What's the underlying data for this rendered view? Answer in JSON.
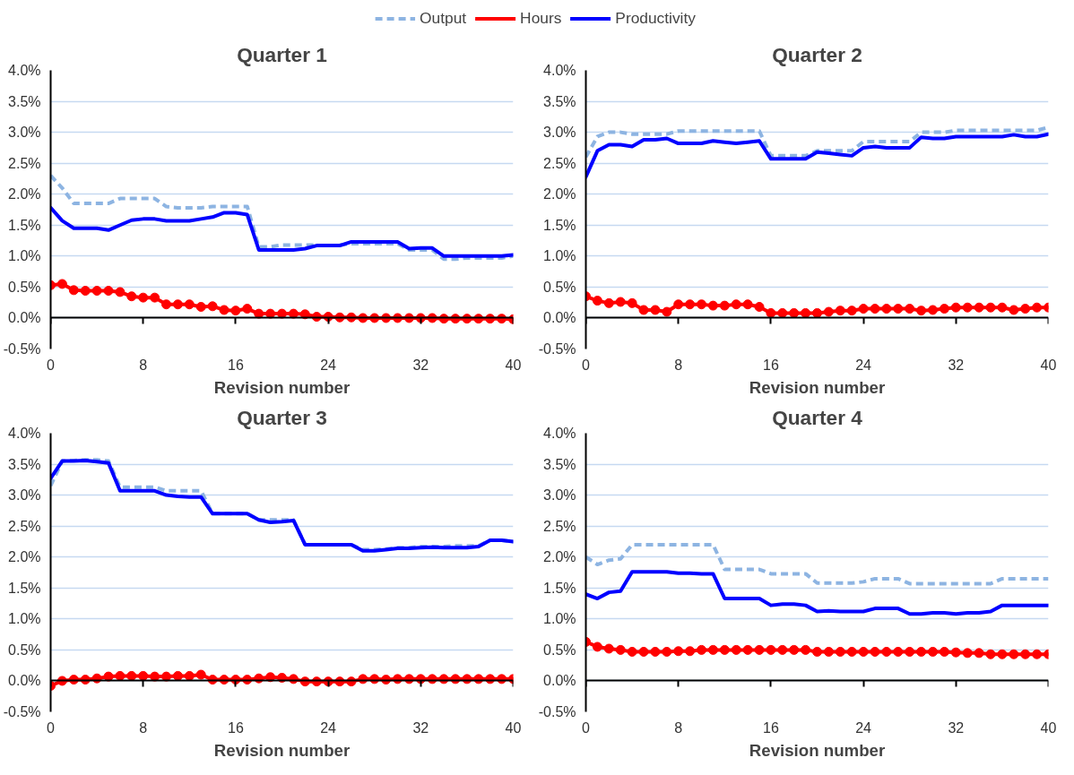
{
  "chart_data": [
    {
      "type": "line",
      "title": "Quarter 1",
      "xlabel": "Revision number",
      "legend": "top",
      "grid": "y",
      "x": [
        0,
        1,
        2,
        3,
        4,
        5,
        6,
        7,
        8,
        9,
        10,
        11,
        12,
        13,
        14,
        15,
        16,
        17,
        18,
        19,
        20,
        21,
        22,
        23,
        24,
        25,
        26,
        27,
        28,
        29,
        30,
        31,
        32,
        33,
        34,
        35,
        36,
        37,
        38,
        39,
        40
      ],
      "xlim": [
        0,
        40
      ],
      "xticks": [
        0,
        8,
        16,
        24,
        32,
        40
      ],
      "ylim": [
        -0.5,
        4
      ],
      "yticks": [
        {
          "value": -0.5,
          "label": "-0.5%"
        },
        {
          "value": 0,
          "label": "0.0%"
        },
        {
          "value": 0.5,
          "label": "0.5%"
        },
        {
          "value": 1,
          "label": "1.0%"
        },
        {
          "value": 1.5,
          "label": "1.5%"
        },
        {
          "value": 2,
          "label": "2.0%"
        },
        {
          "value": 2.5,
          "label": "2.5%"
        },
        {
          "value": 3,
          "label": "3.0%"
        },
        {
          "value": 3.5,
          "label": "3.5%"
        },
        {
          "value": 4,
          "label": "4.0%"
        }
      ],
      "series": [
        {
          "name": "Output",
          "color": "#8db4e2",
          "line_style": "dashed",
          "marker": "none",
          "values": [
            2.3,
            2.1,
            1.85,
            1.85,
            1.85,
            1.85,
            1.93,
            1.93,
            1.93,
            1.93,
            1.8,
            1.78,
            1.78,
            1.78,
            1.8,
            1.8,
            1.8,
            1.8,
            1.15,
            1.15,
            1.18,
            1.18,
            1.18,
            1.18,
            null,
            1.18,
            1.2,
            1.2,
            1.2,
            1.2,
            1.2,
            1.1,
            1.1,
            1.1,
            0.95,
            0.95,
            0.97,
            0.97,
            0.97,
            0.97,
            1.0
          ]
        },
        {
          "name": "Hours",
          "color": "#ff0000",
          "line_style": "solid",
          "marker": "circle",
          "values": [
            0.53,
            0.55,
            0.45,
            0.44,
            0.44,
            0.44,
            0.42,
            0.35,
            0.33,
            0.33,
            0.22,
            0.22,
            0.22,
            0.18,
            0.19,
            0.13,
            0.12,
            0.15,
            0.07,
            0.07,
            0.07,
            0.07,
            0.06,
            0.02,
            0.02,
            0.01,
            0.01,
            0.0,
            0.0,
            0.0,
            0.0,
            0.0,
            0.0,
            0.0,
            -0.01,
            -0.01,
            -0.01,
            -0.01,
            -0.01,
            -0.01,
            -0.02
          ]
        },
        {
          "name": "Productivity",
          "color": "#0000ff",
          "line_style": "solid",
          "marker": "none",
          "values": [
            1.78,
            1.57,
            1.45,
            1.45,
            1.45,
            1.42,
            1.5,
            1.58,
            1.6,
            1.6,
            1.57,
            1.57,
            1.57,
            1.6,
            1.63,
            1.7,
            1.7,
            1.67,
            1.1,
            1.1,
            1.1,
            1.1,
            1.12,
            1.17,
            1.17,
            1.17,
            1.23,
            1.23,
            1.23,
            1.23,
            1.23,
            1.12,
            1.13,
            1.13,
            1.0,
            1.0,
            1.0,
            1.0,
            1.0,
            1.0,
            1.02
          ]
        }
      ]
    },
    {
      "type": "line",
      "title": "Quarter 2",
      "xlabel": "Revision number",
      "grid": "y",
      "x": [
        0,
        1,
        2,
        3,
        4,
        5,
        6,
        7,
        8,
        9,
        10,
        11,
        12,
        13,
        14,
        15,
        16,
        17,
        18,
        19,
        20,
        21,
        22,
        23,
        24,
        25,
        26,
        27,
        28,
        29,
        30,
        31,
        32,
        33,
        34,
        35,
        36,
        37,
        38,
        39,
        40
      ],
      "xlim": [
        0,
        40
      ],
      "xticks": [
        0,
        8,
        16,
        24,
        32,
        40
      ],
      "ylim": [
        -0.5,
        4
      ],
      "yticks": [
        {
          "value": -0.5,
          "label": "-0.5%"
        },
        {
          "value": 0,
          "label": "0.0%"
        },
        {
          "value": 0.5,
          "label": "0.5%"
        },
        {
          "value": 1,
          "label": "1.0%"
        },
        {
          "value": 1.5,
          "label": "1.5%"
        },
        {
          "value": 2,
          "label": "2.0%"
        },
        {
          "value": 2.5,
          "label": "2.5%"
        },
        {
          "value": 3,
          "label": "3.0%"
        },
        {
          "value": 3.5,
          "label": "3.5%"
        },
        {
          "value": 4,
          "label": "4.0%"
        }
      ],
      "series": [
        {
          "color": "#8db4e2",
          "line_style": "dashed",
          "marker": "none",
          "values": [
            2.6,
            2.93,
            3.0,
            3.0,
            2.97,
            2.97,
            2.97,
            2.97,
            3.02,
            3.02,
            3.02,
            3.02,
            3.02,
            3.02,
            3.02,
            3.02,
            2.62,
            2.62,
            2.62,
            2.62,
            2.7,
            2.7,
            2.7,
            2.7,
            2.85,
            2.85,
            2.85,
            2.85,
            2.85,
            3.0,
            3.0,
            3.0,
            3.03,
            3.03,
            3.03,
            3.03,
            3.03,
            3.03,
            3.03,
            3.03,
            3.08
          ]
        },
        {
          "color": "#ff0000",
          "line_style": "solid",
          "marker": "circle",
          "values": [
            0.35,
            0.28,
            0.24,
            0.26,
            0.24,
            0.13,
            0.13,
            0.1,
            0.22,
            0.22,
            0.22,
            0.2,
            0.2,
            0.22,
            0.22,
            0.18,
            0.08,
            0.08,
            0.08,
            0.08,
            0.08,
            0.1,
            0.12,
            0.12,
            0.15,
            0.15,
            0.15,
            0.15,
            0.15,
            0.12,
            0.13,
            0.15,
            0.17,
            0.17,
            0.17,
            0.17,
            0.17,
            0.13,
            0.15,
            0.17,
            0.17
          ]
        },
        {
          "color": "#0000ff",
          "line_style": "solid",
          "marker": "none",
          "values": [
            2.28,
            2.7,
            2.8,
            2.8,
            2.77,
            2.88,
            2.88,
            2.9,
            2.82,
            2.82,
            2.82,
            2.86,
            2.84,
            2.82,
            2.84,
            2.86,
            2.57,
            2.57,
            2.57,
            2.57,
            2.68,
            2.66,
            2.64,
            2.62,
            2.75,
            2.77,
            2.75,
            2.75,
            2.75,
            2.92,
            2.9,
            2.9,
            2.93,
            2.93,
            2.93,
            2.93,
            2.93,
            2.96,
            2.93,
            2.93,
            2.97
          ]
        }
      ]
    },
    {
      "type": "line",
      "title": "Quarter 3",
      "xlabel": "Revision number",
      "grid": "y",
      "x": [
        0,
        1,
        2,
        3,
        4,
        5,
        6,
        7,
        8,
        9,
        10,
        11,
        12,
        13,
        14,
        15,
        16,
        17,
        18,
        19,
        20,
        21,
        22,
        23,
        24,
        25,
        26,
        27,
        28,
        29,
        30,
        31,
        32,
        33,
        34,
        35,
        36,
        37,
        38,
        39,
        40
      ],
      "xlim": [
        0,
        40
      ],
      "xticks": [
        0,
        8,
        16,
        24,
        32,
        40
      ],
      "ylim": [
        -0.5,
        4
      ],
      "yticks": [
        {
          "value": -0.5,
          "label": "-0.5%"
        },
        {
          "value": 0,
          "label": "0.0%"
        },
        {
          "value": 0.5,
          "label": "0.5%"
        },
        {
          "value": 1,
          "label": "1.0%"
        },
        {
          "value": 1.5,
          "label": "1.5%"
        },
        {
          "value": 2,
          "label": "2.0%"
        },
        {
          "value": 2.5,
          "label": "2.5%"
        },
        {
          "value": 3,
          "label": "3.0%"
        },
        {
          "value": 3.5,
          "label": "3.5%"
        },
        {
          "value": 4,
          "label": "4.0%"
        }
      ],
      "series": [
        {
          "color": "#8db4e2",
          "line_style": "dashed",
          "marker": "none",
          "values": [
            3.15,
            3.55,
            3.56,
            3.57,
            3.57,
            3.55,
            3.13,
            3.13,
            3.13,
            3.13,
            3.07,
            3.07,
            3.07,
            3.07,
            2.7,
            2.7,
            2.7,
            2.7,
            2.6,
            2.6,
            2.6,
            2.6,
            2.2,
            null,
            null,
            null,
            2.2,
            2.12,
            2.12,
            2.13,
            2.15,
            2.15,
            2.17,
            2.17,
            2.17,
            2.18,
            2.18,
            2.18,
            2.27,
            2.27,
            2.25
          ]
        },
        {
          "color": "#ff0000",
          "line_style": "solid",
          "marker": "circle",
          "values": [
            -0.08,
            0.0,
            0.02,
            0.02,
            0.04,
            0.07,
            0.08,
            0.08,
            0.08,
            0.07,
            0.07,
            0.08,
            0.08,
            0.1,
            0.02,
            0.02,
            0.02,
            0.02,
            0.04,
            0.06,
            0.05,
            0.03,
            -0.01,
            -0.01,
            -0.01,
            -0.01,
            -0.01,
            0.03,
            0.03,
            0.02,
            0.03,
            0.03,
            0.03,
            0.03,
            0.03,
            0.03,
            0.03,
            0.03,
            0.03,
            0.03,
            0.03
          ]
        },
        {
          "color": "#0000ff",
          "line_style": "solid",
          "marker": "none",
          "values": [
            3.27,
            3.55,
            3.55,
            3.56,
            3.54,
            3.52,
            3.07,
            3.07,
            3.07,
            3.07,
            3.0,
            2.98,
            2.97,
            2.97,
            2.7,
            2.7,
            2.7,
            2.7,
            2.6,
            2.56,
            2.57,
            2.59,
            2.2,
            2.2,
            2.2,
            2.2,
            2.2,
            2.1,
            2.1,
            2.12,
            2.14,
            2.14,
            2.15,
            2.16,
            2.15,
            2.15,
            2.15,
            2.17,
            2.27,
            2.27,
            2.25
          ]
        }
      ]
    },
    {
      "type": "line",
      "title": "Quarter 4",
      "xlabel": "Revision number",
      "grid": "y",
      "x": [
        0,
        1,
        2,
        3,
        4,
        5,
        6,
        7,
        8,
        9,
        10,
        11,
        12,
        13,
        14,
        15,
        16,
        17,
        18,
        19,
        20,
        21,
        22,
        23,
        24,
        25,
        26,
        27,
        28,
        29,
        30,
        31,
        32,
        33,
        34,
        35,
        36,
        37,
        38,
        39,
        40
      ],
      "xlim": [
        0,
        40
      ],
      "xticks": [
        0,
        8,
        16,
        24,
        32,
        40
      ],
      "ylim": [
        -0.5,
        4
      ],
      "yticks": [
        {
          "value": -0.5,
          "label": "-0.5%"
        },
        {
          "value": 0,
          "label": "0.0%"
        },
        {
          "value": 0.5,
          "label": "0.5%"
        },
        {
          "value": 1,
          "label": "1.0%"
        },
        {
          "value": 1.5,
          "label": "1.5%"
        },
        {
          "value": 2,
          "label": "2.0%"
        },
        {
          "value": 2.5,
          "label": "2.5%"
        },
        {
          "value": 3,
          "label": "3.0%"
        },
        {
          "value": 3.5,
          "label": "3.5%"
        },
        {
          "value": 4,
          "label": "4.0%"
        }
      ],
      "series": [
        {
          "color": "#8db4e2",
          "line_style": "dashed",
          "marker": "none",
          "values": [
            2.0,
            1.88,
            1.95,
            1.97,
            2.2,
            2.2,
            2.2,
            2.2,
            2.2,
            2.2,
            2.2,
            2.2,
            1.8,
            1.8,
            1.8,
            1.8,
            1.73,
            1.73,
            1.73,
            1.73,
            1.58,
            1.58,
            1.58,
            1.58,
            1.6,
            1.65,
            1.65,
            1.65,
            1.57,
            1.57,
            1.57,
            1.57,
            1.57,
            1.57,
            1.57,
            1.57,
            1.65,
            1.65,
            1.65,
            1.65,
            1.65
          ]
        },
        {
          "color": "#ff0000",
          "line_style": "solid",
          "marker": "circle",
          "values": [
            0.63,
            0.55,
            0.52,
            0.5,
            0.47,
            0.47,
            0.47,
            0.47,
            0.48,
            0.48,
            0.5,
            0.5,
            0.5,
            0.5,
            0.5,
            0.5,
            0.5,
            0.5,
            0.5,
            0.5,
            0.47,
            0.47,
            0.47,
            0.47,
            0.47,
            0.47,
            0.47,
            0.47,
            0.47,
            0.47,
            0.47,
            0.47,
            0.46,
            0.45,
            0.45,
            0.43,
            0.43,
            0.43,
            0.43,
            0.43,
            0.43
          ]
        },
        {
          "color": "#0000ff",
          "line_style": "solid",
          "marker": "none",
          "values": [
            1.4,
            1.33,
            1.43,
            1.45,
            1.76,
            1.76,
            1.76,
            1.76,
            1.74,
            1.74,
            1.73,
            1.73,
            1.33,
            1.33,
            1.33,
            1.33,
            1.22,
            1.24,
            1.24,
            1.22,
            1.12,
            1.13,
            1.12,
            1.12,
            1.12,
            1.17,
            1.17,
            1.17,
            1.08,
            1.08,
            1.1,
            1.1,
            1.08,
            1.1,
            1.1,
            1.12,
            1.22,
            1.22,
            1.22,
            1.22,
            1.22
          ]
        }
      ]
    }
  ]
}
